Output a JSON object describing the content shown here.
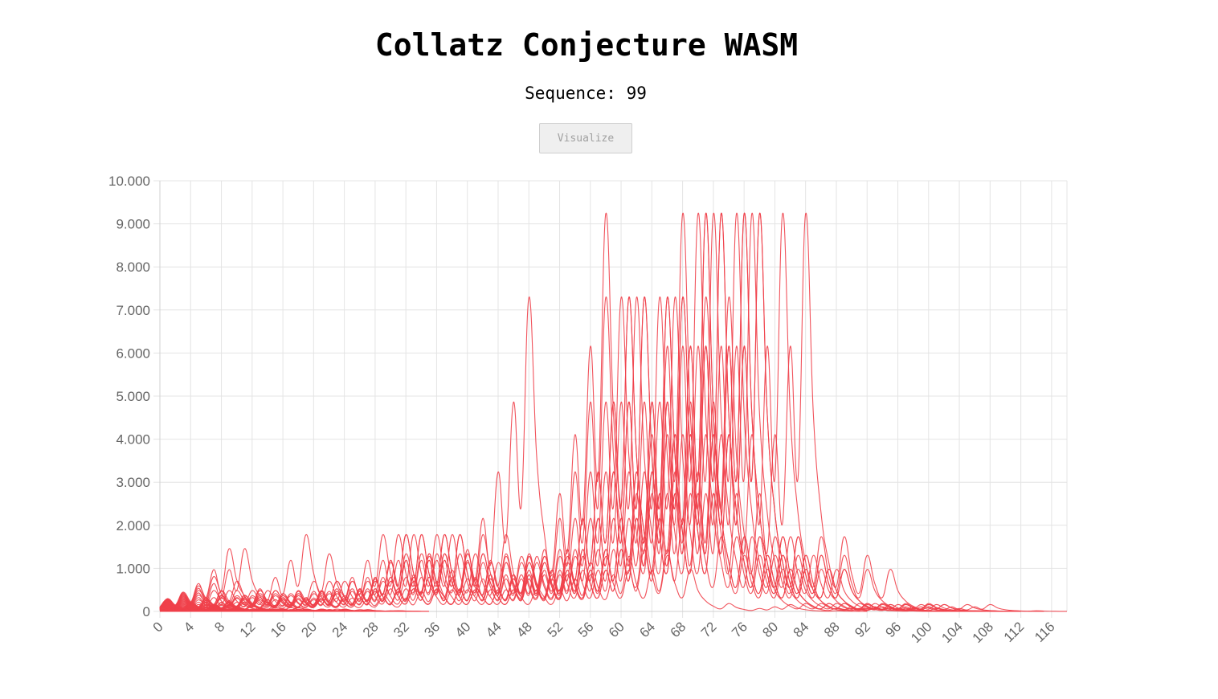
{
  "header": {
    "title": "Collatz Conjecture WASM",
    "sequence_label": "Sequence: 99",
    "visualize_label": "Visualize"
  },
  "colors": {
    "series": "#f0404a"
  },
  "chart_data": {
    "type": "line",
    "title": "",
    "xlabel": "",
    "ylabel": "",
    "series_count": 99,
    "sequence_generator": "collatz: n -> n/2 if even, 3n+1 if odd, starting values 1..99",
    "ylim": [
      0,
      10000
    ],
    "y_ticks": [
      0,
      1000,
      2000,
      3000,
      4000,
      5000,
      6000,
      7000,
      8000,
      9000,
      10000
    ],
    "y_tick_labels": [
      "0",
      "1.000",
      "2.000",
      "3.000",
      "4.000",
      "5.000",
      "6.000",
      "7.000",
      "8.000",
      "9.000",
      "10.000"
    ],
    "xlim": [
      0,
      118
    ],
    "x_ticks": [
      0,
      4,
      8,
      12,
      16,
      20,
      24,
      28,
      32,
      36,
      40,
      44,
      48,
      52,
      56,
      60,
      64,
      68,
      72,
      76,
      80,
      84,
      88,
      92,
      96,
      100,
      104,
      108,
      112,
      116
    ],
    "x_tick_labels": [
      "0",
      "4",
      "8",
      "12",
      "16",
      "20",
      "24",
      "28",
      "32",
      "36",
      "40",
      "44",
      "48",
      "52",
      "56",
      "60",
      "64",
      "68",
      "72",
      "76",
      "80",
      "84",
      "88",
      "92",
      "96",
      "100",
      "104",
      "108",
      "112",
      "116"
    ],
    "grid": true,
    "legend": "none"
  }
}
